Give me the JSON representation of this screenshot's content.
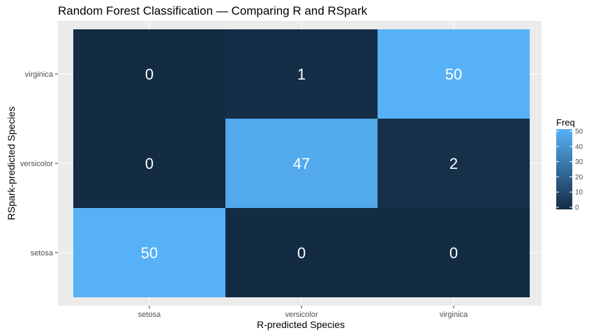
{
  "chart_data": {
    "type": "heatmap",
    "title": "Random Forest Classification — Comparing R and RSpark",
    "xlabel": "R-predicted Species",
    "ylabel": "RSpark-predicted Species",
    "x_categories": [
      "setosa",
      "versicolor",
      "virginica"
    ],
    "y_categories": [
      "setosa",
      "versicolor",
      "virginica"
    ],
    "cells": [
      {
        "x": "setosa",
        "y": "setosa",
        "value": 50
      },
      {
        "x": "versicolor",
        "y": "setosa",
        "value": 0
      },
      {
        "x": "virginica",
        "y": "setosa",
        "value": 0
      },
      {
        "x": "setosa",
        "y": "versicolor",
        "value": 0
      },
      {
        "x": "versicolor",
        "y": "versicolor",
        "value": 47
      },
      {
        "x": "virginica",
        "y": "versicolor",
        "value": 2
      },
      {
        "x": "setosa",
        "y": "virginica",
        "value": 0
      },
      {
        "x": "versicolor",
        "y": "virginica",
        "value": 1
      },
      {
        "x": "virginica",
        "y": "virginica",
        "value": 50
      }
    ],
    "legend": {
      "title": "Freq",
      "ticks": [
        0,
        10,
        20,
        30,
        40,
        50
      ],
      "range": [
        0,
        50
      ],
      "placement": "right"
    },
    "color_low": "#132b43",
    "color_high": "#56b1f7",
    "panel_background": "#ebebeb",
    "grid": true
  }
}
